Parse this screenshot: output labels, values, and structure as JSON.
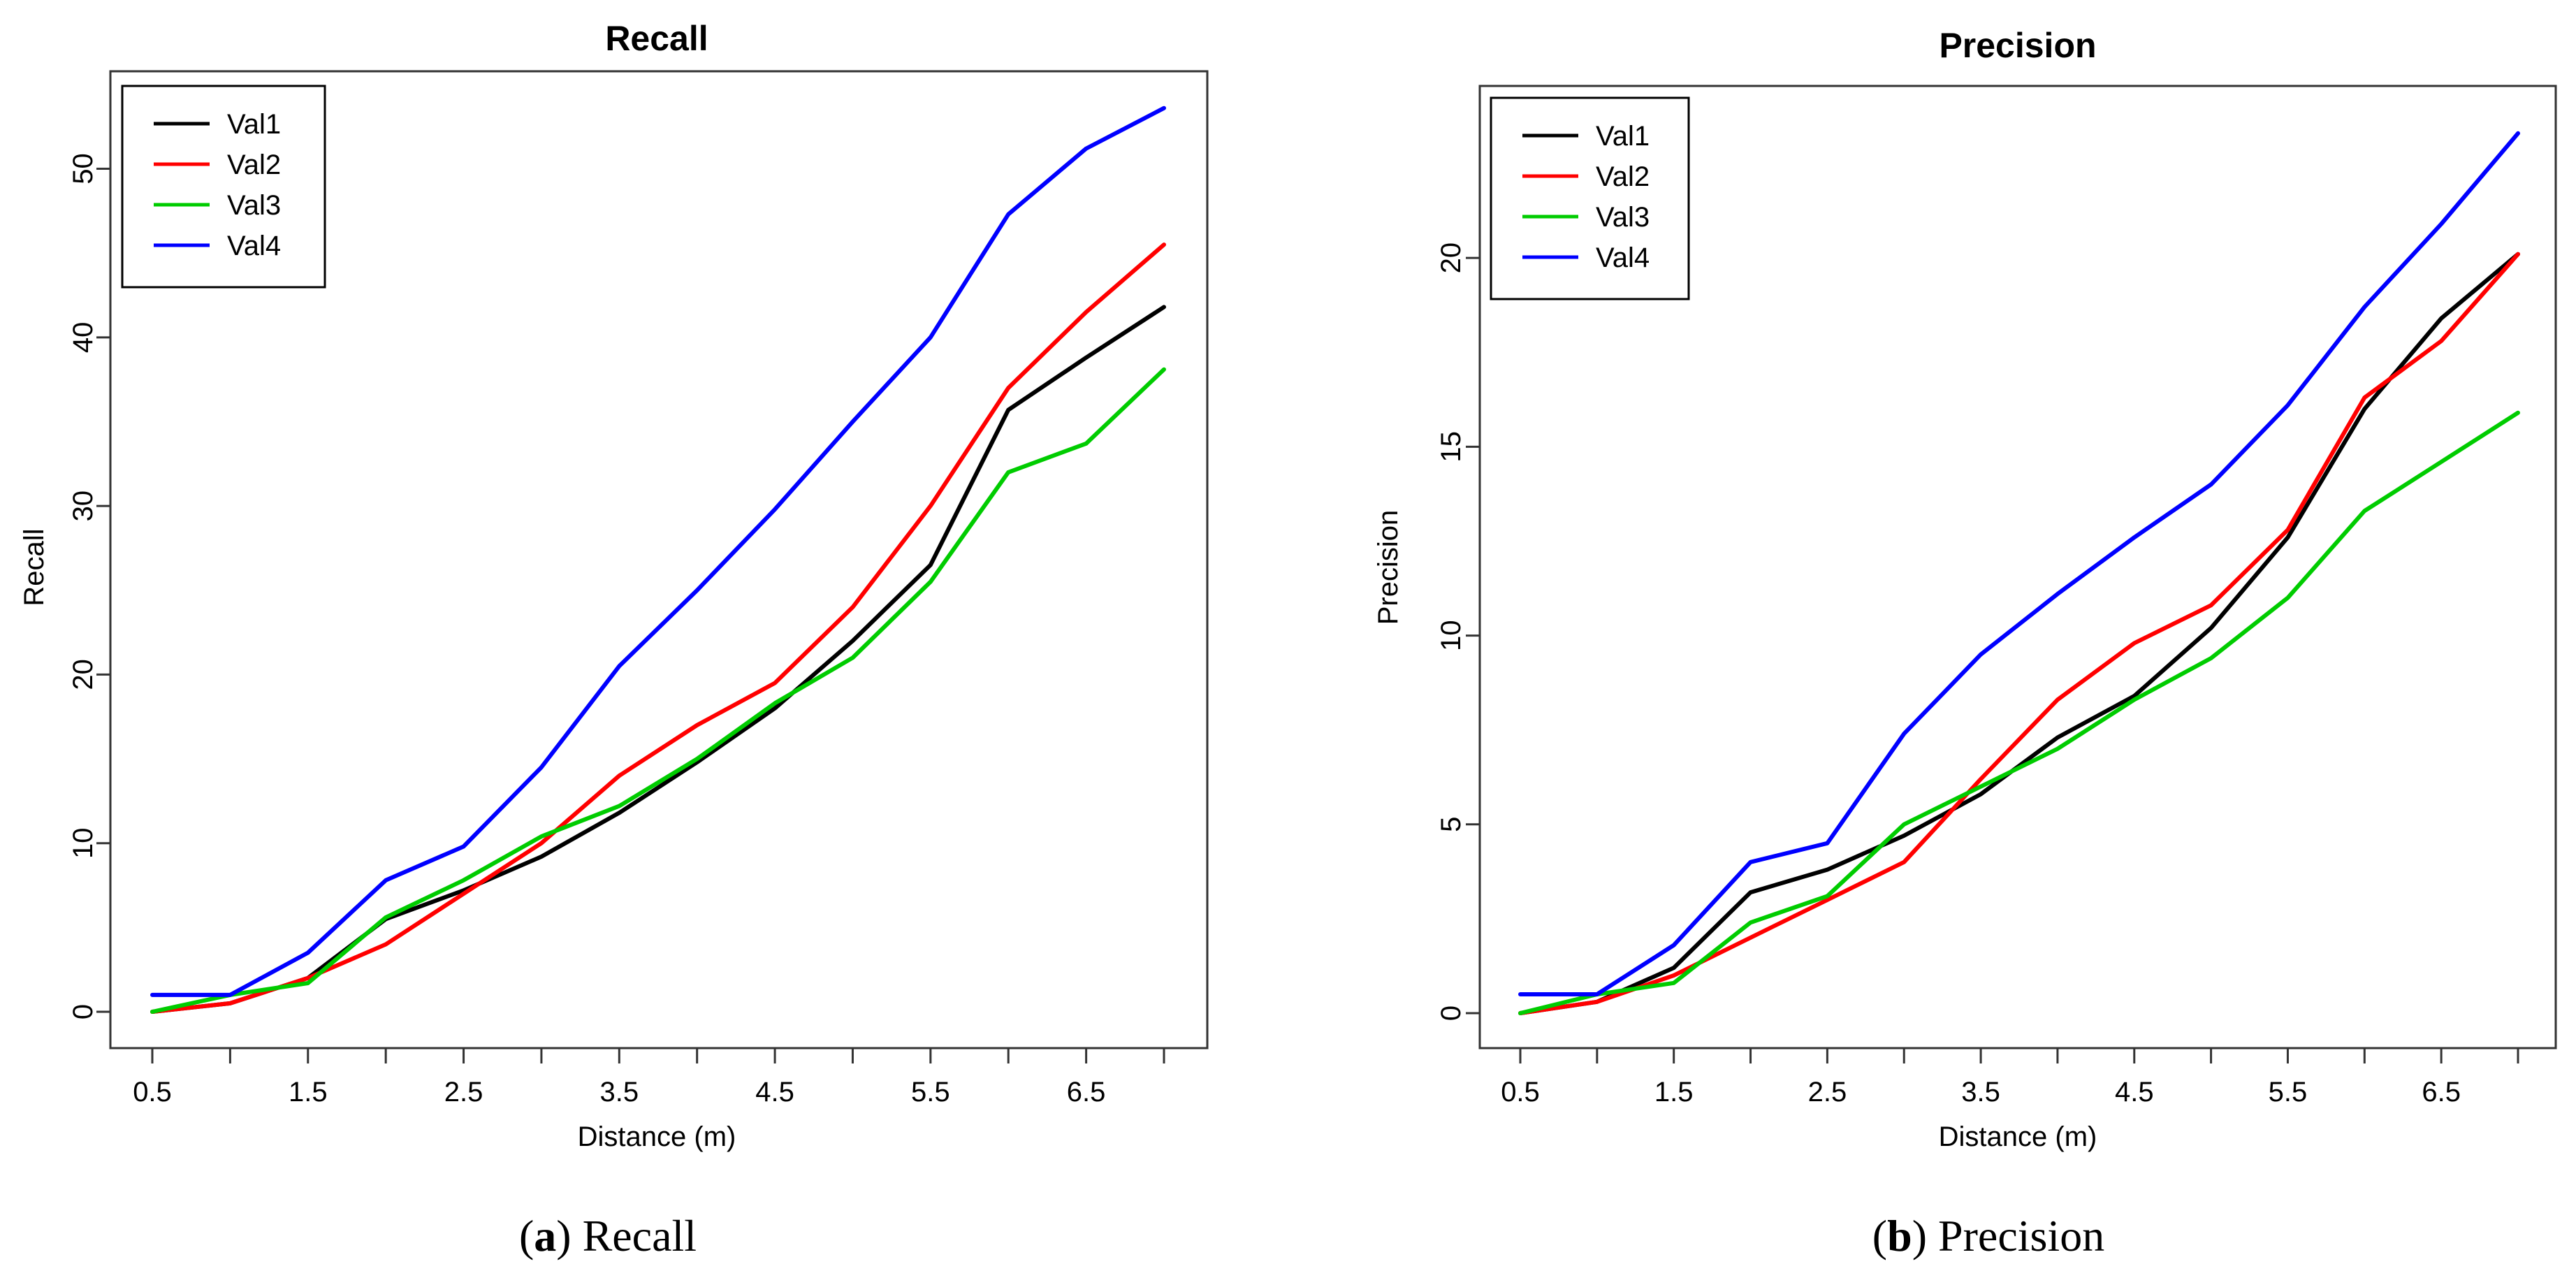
{
  "chart_data": [
    {
      "type": "line",
      "title": "Recall",
      "xlabel": "Distance (m)",
      "ylabel": "Recall",
      "caption_letter": "a",
      "caption_text": "Recall",
      "x": [
        0.5,
        1,
        1.5,
        2,
        2.5,
        3,
        3.5,
        4,
        4.5,
        5,
        5.5,
        6,
        6.5,
        7
      ],
      "xticks": [
        0.5,
        1,
        1.5,
        2,
        2.5,
        3,
        3.5,
        4,
        4.5,
        5,
        5.5,
        6,
        6.5,
        7
      ],
      "xtick_labels": [
        "0.5",
        "",
        "1.5",
        "",
        "2.5",
        "",
        "3.5",
        "",
        "4.5",
        "",
        "5.5",
        "",
        "6.5",
        ""
      ],
      "yticks": [
        0,
        10,
        20,
        30,
        40,
        50
      ],
      "ytick_labels": [
        "0",
        "10",
        "20",
        "30",
        "40",
        "50"
      ],
      "xlim": [
        0.5,
        7
      ],
      "ylim": [
        0,
        54
      ],
      "legend_position": "top-left",
      "grid": false,
      "series": [
        {
          "name": "Val1",
          "color": "#000000",
          "values": [
            0,
            0.5,
            2,
            5.5,
            7.2,
            9.2,
            11.8,
            14.8,
            18,
            22,
            26.5,
            35.7,
            38.8,
            41.8
          ]
        },
        {
          "name": "Val2",
          "color": "#ff0000",
          "values": [
            0,
            0.5,
            2,
            4,
            7,
            10,
            14,
            17,
            19.5,
            24,
            30,
            37,
            41.5,
            45.5
          ]
        },
        {
          "name": "Val3",
          "color": "#00cc00",
          "values": [
            0,
            1,
            1.7,
            5.6,
            7.8,
            10.4,
            12.2,
            15,
            18.3,
            21,
            25.5,
            32,
            33.7,
            38.1
          ]
        },
        {
          "name": "Val4",
          "color": "#0000ff",
          "values": [
            1,
            1,
            3.5,
            7.8,
            9.8,
            14.5,
            20.5,
            25,
            29.8,
            35,
            40,
            47.3,
            51.2,
            53.6
          ]
        }
      ]
    },
    {
      "type": "line",
      "title": "Precision",
      "xlabel": "Distance (m)",
      "ylabel": "Precision",
      "caption_letter": "b",
      "caption_text": "Precision",
      "x": [
        0.5,
        1,
        1.5,
        2,
        2.5,
        3,
        3.5,
        4,
        4.5,
        5,
        5.5,
        6,
        6.5,
        7
      ],
      "xticks": [
        0.5,
        1,
        1.5,
        2,
        2.5,
        3,
        3.5,
        4,
        4.5,
        5,
        5.5,
        6,
        6.5,
        7
      ],
      "xtick_labels": [
        "0.5",
        "",
        "1.5",
        "",
        "2.5",
        "",
        "3.5",
        "",
        "4.5",
        "",
        "5.5",
        "",
        "6.5",
        ""
      ],
      "yticks": [
        0,
        5,
        10,
        15,
        20
      ],
      "ytick_labels": [
        "0",
        "5",
        "10",
        "15",
        "20"
      ],
      "xlim": [
        0.5,
        7
      ],
      "ylim": [
        0,
        23.5
      ],
      "legend_position": "top-left",
      "grid": false,
      "series": [
        {
          "name": "Val1",
          "color": "#000000",
          "values": [
            0,
            0.3,
            1.2,
            3.2,
            3.8,
            4.7,
            5.8,
            7.3,
            8.4,
            10.2,
            12.6,
            16,
            18.4,
            20.1
          ]
        },
        {
          "name": "Val2",
          "color": "#ff0000",
          "values": [
            0,
            0.3,
            1,
            2,
            3,
            4,
            6.2,
            8.3,
            9.8,
            10.8,
            12.8,
            16.3,
            17.8,
            20.1
          ]
        },
        {
          "name": "Val3",
          "color": "#00cc00",
          "values": [
            0,
            0.5,
            0.8,
            2.4,
            3.1,
            5,
            6,
            7,
            8.3,
            9.4,
            11,
            13.3,
            14.6,
            15.9
          ]
        },
        {
          "name": "Val4",
          "color": "#0000ff",
          "values": [
            0.5,
            0.5,
            1.8,
            4,
            4.5,
            7.4,
            9.5,
            11.1,
            12.6,
            14,
            16.1,
            18.7,
            20.9,
            23.3
          ]
        }
      ]
    }
  ]
}
